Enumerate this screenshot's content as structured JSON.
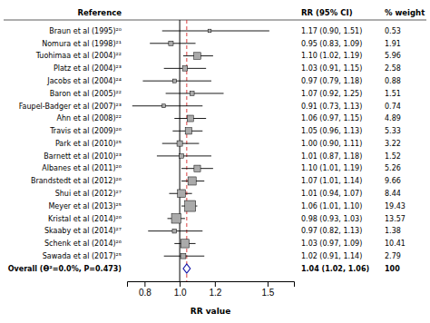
{
  "chart_data": {
    "type": "forest",
    "xlabel": "RR value",
    "column_headers": [
      "Reference",
      "RR (95% CI)",
      "% weight"
    ],
    "categories": [
      "Braun et al (1995)²⁰",
      "Nomura et al (1998)²¹",
      "Tuohimaa et al (2004)²²",
      "Platz et al (2004)²³",
      "Jacobs et al (2004)²⁴",
      "Baron et al (2005)²²",
      "Faupel-Badger et al (2007)²³",
      "Ahn et al (2008)²²",
      "Travis et al (2009)²⁶",
      "Park et al (2010)²⁵",
      "Barnett et al (2010)²³",
      "Albanes et al (2011)²⁶",
      "Brandstedt et al (2012)²⁶",
      "Shui et al (2012)²⁷",
      "Meyer et al (2013)²⁵",
      "Kristal et al (2014)²⁶",
      "Skaaby et al (2014)²⁷",
      "Schenk et al (2014)²⁶",
      "Sawada et al (2017)²⁵"
    ],
    "values": [
      1.17,
      0.95,
      1.1,
      1.03,
      0.97,
      1.07,
      0.91,
      1.06,
      1.05,
      1.0,
      1.01,
      1.1,
      1.07,
      1.01,
      1.06,
      0.98,
      0.97,
      1.03,
      1.02
    ],
    "ci_lo": [
      0.9,
      0.83,
      1.02,
      0.91,
      0.79,
      0.92,
      0.73,
      0.97,
      0.96,
      0.9,
      0.87,
      1.01,
      1.01,
      0.94,
      1.01,
      0.93,
      0.82,
      0.97,
      0.91
    ],
    "ci_hi": [
      1.51,
      1.09,
      1.19,
      1.15,
      1.18,
      1.25,
      1.13,
      1.15,
      1.13,
      1.11,
      1.18,
      1.19,
      1.14,
      1.07,
      1.1,
      1.03,
      1.13,
      1.09,
      1.14
    ],
    "weights": [
      0.53,
      1.91,
      5.96,
      2.58,
      0.88,
      1.51,
      0.74,
      4.89,
      5.33,
      3.22,
      1.52,
      5.26,
      9.66,
      8.44,
      19.43,
      13.57,
      1.38,
      10.41,
      2.79
    ],
    "value_labels": [
      "1.17 (0.90, 1.51)",
      "0.95 (0.83, 1.09)",
      "1.10 (1.02, 1.19)",
      "1.03 (0.91, 1.15)",
      "0.97 (0.79, 1.18)",
      "1.07 (0.92, 1.25)",
      "0.91 (0.73, 1.13)",
      "1.06 (0.97, 1.15)",
      "1.05 (0.96, 1.13)",
      "1.00 (0.90, 1.11)",
      "1.01 (0.87, 1.18)",
      "1.10 (1.01, 1.19)",
      "1.07 (1.01, 1.14)",
      "1.01 (0.94, 1.07)",
      "1.06 (1.01, 1.10)",
      "0.98 (0.93, 1.03)",
      "0.97 (0.82, 1.13)",
      "1.03 (0.97, 1.09)",
      "1.02 (0.91, 1.14)"
    ],
    "color": "#aaaaaa",
    "overall": {
      "label": "Overall (ϴ²=0.0%, P=0.473)",
      "value": 1.04,
      "ci_lo": 1.02,
      "ci_hi": 1.06,
      "weight": 100,
      "value_label": "1.04 (1.02, 1.06)",
      "color": "#1a1aaa"
    },
    "null_line": 1.0,
    "pooled_line": 1.04,
    "xlim": [
      0.7,
      1.65
    ],
    "xticks": [
      0.8,
      {
        "value": 1.0,
        "label": "1.0"
      },
      1.2,
      1.5
    ]
  }
}
